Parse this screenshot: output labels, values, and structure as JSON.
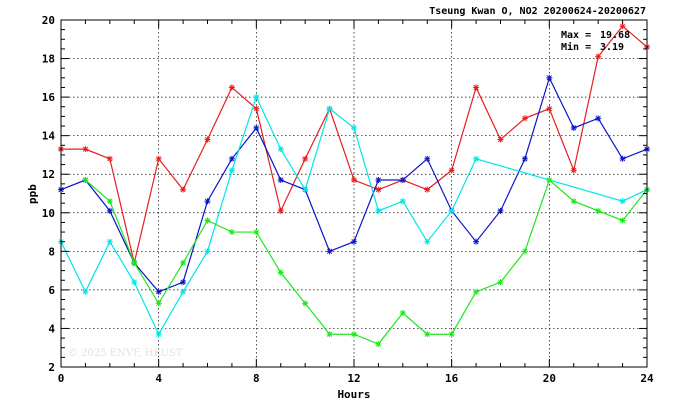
{
  "chart_data": {
    "type": "line",
    "title": "Tseung Kwan O, NO2 20200624-20200627",
    "xlabel": "Hours",
    "ylabel": "ppb",
    "xlim": [
      0,
      24
    ],
    "ylim": [
      2,
      20
    ],
    "x_ticks": [
      0,
      4,
      8,
      12,
      16,
      20,
      24
    ],
    "y_ticks": [
      2,
      4,
      6,
      8,
      10,
      12,
      14,
      16,
      18,
      20
    ],
    "grid": true,
    "watermark": "© 2025 ENVF, HKUST",
    "stats": {
      "max_label": "Max =",
      "max_value": "19.68",
      "min_label": "Min =",
      "min_value": "3.19"
    },
    "x": [
      0,
      1,
      2,
      3,
      4,
      5,
      6,
      7,
      8,
      9,
      10,
      11,
      12,
      13,
      14,
      15,
      16,
      17,
      18,
      19,
      20,
      21,
      22,
      23,
      24
    ],
    "series": [
      {
        "color": "#e61e1e",
        "values": [
          13.3,
          13.3,
          12.8,
          7.4,
          12.8,
          11.2,
          13.8,
          16.5,
          15.4,
          10.1,
          12.8,
          15.4,
          11.7,
          11.2,
          11.7,
          11.2,
          12.2,
          16.5,
          13.8,
          14.9,
          15.4,
          12.2,
          18.1,
          19.68,
          18.6
        ]
      },
      {
        "color": "#0a14c8",
        "values": [
          11.2,
          11.7,
          10.1,
          7.4,
          5.9,
          6.4,
          10.6,
          12.8,
          14.4,
          11.7,
          11.2,
          8.0,
          8.5,
          11.7,
          11.7,
          12.8,
          10.1,
          8.5,
          10.1,
          12.8,
          17.0,
          14.4,
          14.9,
          12.8,
          13.3
        ]
      },
      {
        "color": "#00e6e6",
        "values": [
          8.5,
          5.9,
          8.5,
          6.4,
          3.7,
          5.9,
          8.0,
          12.2,
          16.0,
          13.3,
          11.2,
          15.4,
          14.4,
          10.1,
          10.6,
          8.5,
          10.1,
          12.8,
          null,
          null,
          null,
          null,
          null,
          10.6,
          11.2
        ]
      },
      {
        "color": "#1ee61e",
        "values": [
          null,
          11.7,
          10.6,
          7.4,
          5.3,
          7.4,
          9.6,
          9.0,
          9.0,
          6.9,
          5.3,
          3.7,
          3.7,
          3.19,
          4.8,
          3.7,
          3.7,
          5.9,
          6.4,
          8.0,
          11.7,
          10.6,
          10.1,
          9.6,
          11.2
        ]
      }
    ]
  }
}
